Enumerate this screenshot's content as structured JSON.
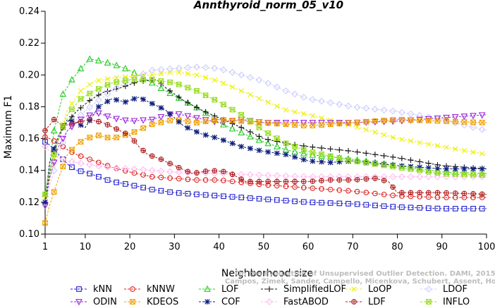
{
  "chart_data": {
    "type": "line",
    "title": "Annthyroid_norm_05_v10",
    "xlabel": "Neighborhood size",
    "ylabel": "Maximum F1",
    "xlim": [
      1,
      100
    ],
    "ylim": [
      0.1,
      0.24
    ],
    "x_ticks": [
      "1",
      "10",
      "20",
      "30",
      "40",
      "50",
      "60",
      "70",
      "80",
      "90",
      "100"
    ],
    "y_ticks": [
      "0.10",
      "0.12",
      "0.14",
      "0.16",
      "0.18",
      "0.20",
      "0.22",
      "0.24"
    ],
    "grid": false,
    "legend_position": "bottom",
    "watermark": [
      "Campos, Zimek, Sander, Campello, Micenkova, Schubert, Assent, Houle",
      "On the Evaluation of Unsupervised Outlier Detection. DAMI, 2015."
    ],
    "series": [
      {
        "name": "kNN",
        "color": "#1f1fd0",
        "marker": "square",
        "points": [
          [
            1,
            0.158
          ],
          [
            2,
            0.156
          ],
          [
            4,
            0.15
          ],
          [
            6,
            0.144
          ],
          [
            8,
            0.14
          ],
          [
            10,
            0.139
          ],
          [
            13,
            0.136
          ],
          [
            16,
            0.133
          ],
          [
            20,
            0.131
          ],
          [
            25,
            0.128
          ],
          [
            30,
            0.126
          ],
          [
            35,
            0.125
          ],
          [
            40,
            0.124
          ],
          [
            50,
            0.122
          ],
          [
            60,
            0.12
          ],
          [
            70,
            0.119
          ],
          [
            80,
            0.117
          ],
          [
            90,
            0.116
          ],
          [
            100,
            0.116
          ]
        ]
      },
      {
        "name": "kNNW",
        "color": "#e02020",
        "marker": "circle",
        "points": [
          [
            1,
            0.161
          ],
          [
            2,
            0.16
          ],
          [
            4,
            0.157
          ],
          [
            6,
            0.153
          ],
          [
            8,
            0.15
          ],
          [
            10,
            0.148
          ],
          [
            13,
            0.145
          ],
          [
            16,
            0.142
          ],
          [
            20,
            0.139
          ],
          [
            25,
            0.136
          ],
          [
            30,
            0.135
          ],
          [
            35,
            0.134
          ],
          [
            40,
            0.134
          ],
          [
            50,
            0.131
          ],
          [
            60,
            0.129
          ],
          [
            70,
            0.127
          ],
          [
            80,
            0.124
          ],
          [
            90,
            0.123
          ],
          [
            100,
            0.123
          ]
        ]
      },
      {
        "name": "LOF",
        "color": "#22cc22",
        "marker": "triangle",
        "points": [
          [
            1,
            0.125
          ],
          [
            2,
            0.143
          ],
          [
            3,
            0.165
          ],
          [
            5,
            0.188
          ],
          [
            7,
            0.197
          ],
          [
            9,
            0.204
          ],
          [
            11,
            0.21
          ],
          [
            13,
            0.209
          ],
          [
            16,
            0.207
          ],
          [
            19,
            0.204
          ],
          [
            22,
            0.2
          ],
          [
            25,
            0.195
          ],
          [
            28,
            0.19
          ],
          [
            32,
            0.184
          ],
          [
            36,
            0.178
          ],
          [
            40,
            0.17
          ],
          [
            44,
            0.165
          ],
          [
            48,
            0.16
          ],
          [
            55,
            0.153
          ],
          [
            60,
            0.15
          ],
          [
            70,
            0.147
          ],
          [
            80,
            0.143
          ],
          [
            90,
            0.139
          ],
          [
            100,
            0.138
          ]
        ]
      },
      {
        "name": "SimplifiedLOF",
        "color": "#111111",
        "marker": "plus",
        "points": [
          [
            1,
            0.12
          ],
          [
            2,
            0.138
          ],
          [
            3,
            0.152
          ],
          [
            5,
            0.167
          ],
          [
            8,
            0.177
          ],
          [
            11,
            0.184
          ],
          [
            14,
            0.189
          ],
          [
            18,
            0.192
          ],
          [
            22,
            0.196
          ],
          [
            26,
            0.197
          ],
          [
            28,
            0.192
          ],
          [
            32,
            0.184
          ],
          [
            36,
            0.178
          ],
          [
            40,
            0.173
          ],
          [
            45,
            0.167
          ],
          [
            50,
            0.16
          ],
          [
            55,
            0.157
          ],
          [
            60,
            0.155
          ],
          [
            70,
            0.152
          ],
          [
            80,
            0.148
          ],
          [
            90,
            0.143
          ],
          [
            100,
            0.141
          ]
        ]
      },
      {
        "name": "LoOP",
        "color": "#eeee00",
        "marker": "x",
        "points": [
          [
            1,
            0.123
          ],
          [
            2,
            0.135
          ],
          [
            4,
            0.16
          ],
          [
            6,
            0.178
          ],
          [
            9,
            0.19
          ],
          [
            12,
            0.196
          ],
          [
            16,
            0.198
          ],
          [
            20,
            0.199
          ],
          [
            25,
            0.2
          ],
          [
            30,
            0.202
          ],
          [
            35,
            0.2
          ],
          [
            40,
            0.196
          ],
          [
            45,
            0.19
          ],
          [
            50,
            0.184
          ],
          [
            55,
            0.178
          ],
          [
            60,
            0.175
          ],
          [
            70,
            0.168
          ],
          [
            80,
            0.16
          ],
          [
            90,
            0.155
          ],
          [
            100,
            0.15
          ]
        ]
      },
      {
        "name": "LDOF",
        "color": "#ccccff",
        "marker": "diamond",
        "points": [
          [
            1,
            0.118
          ],
          [
            2,
            0.13
          ],
          [
            4,
            0.15
          ],
          [
            6,
            0.165
          ],
          [
            9,
            0.175
          ],
          [
            12,
            0.182
          ],
          [
            16,
            0.19
          ],
          [
            20,
            0.197
          ],
          [
            25,
            0.203
          ],
          [
            30,
            0.204
          ],
          [
            35,
            0.205
          ],
          [
            40,
            0.204
          ],
          [
            45,
            0.2
          ],
          [
            50,
            0.196
          ],
          [
            55,
            0.19
          ],
          [
            60,
            0.185
          ],
          [
            70,
            0.18
          ],
          [
            80,
            0.177
          ],
          [
            90,
            0.172
          ],
          [
            100,
            0.165
          ]
        ]
      },
      {
        "name": "ODIN",
        "color": "#9922dd",
        "marker": "triangle-down",
        "points": [
          [
            1,
            0.118
          ],
          [
            2,
            0.135
          ],
          [
            4,
            0.155
          ],
          [
            6,
            0.165
          ],
          [
            8,
            0.17
          ],
          [
            10,
            0.174
          ],
          [
            13,
            0.176
          ],
          [
            16,
            0.173
          ],
          [
            20,
            0.171
          ],
          [
            25,
            0.172
          ],
          [
            30,
            0.176
          ],
          [
            35,
            0.173
          ],
          [
            40,
            0.17
          ],
          [
            45,
            0.172
          ],
          [
            50,
            0.17
          ],
          [
            60,
            0.17
          ],
          [
            70,
            0.17
          ],
          [
            80,
            0.171
          ],
          [
            90,
            0.173
          ],
          [
            100,
            0.175
          ]
        ]
      },
      {
        "name": "KDEOS",
        "color": "#f0a000",
        "marker": "square-x",
        "points": [
          [
            1,
            0.107
          ],
          [
            2,
            0.118
          ],
          [
            4,
            0.135
          ],
          [
            6,
            0.15
          ],
          [
            8,
            0.156
          ],
          [
            10,
            0.16
          ],
          [
            13,
            0.162
          ],
          [
            16,
            0.16
          ],
          [
            20,
            0.163
          ],
          [
            25,
            0.169
          ],
          [
            30,
            0.172
          ],
          [
            35,
            0.17
          ],
          [
            40,
            0.172
          ],
          [
            50,
            0.17
          ],
          [
            60,
            0.168
          ],
          [
            70,
            0.17
          ],
          [
            80,
            0.172
          ],
          [
            90,
            0.171
          ],
          [
            100,
            0.17
          ]
        ]
      },
      {
        "name": "COF",
        "color": "#102080",
        "marker": "star",
        "points": [
          [
            1,
            0.12
          ],
          [
            2,
            0.145
          ],
          [
            4,
            0.162
          ],
          [
            6,
            0.172
          ],
          [
            8,
            0.17
          ],
          [
            10,
            0.167
          ],
          [
            13,
            0.18
          ],
          [
            16,
            0.185
          ],
          [
            19,
            0.183
          ],
          [
            22,
            0.186
          ],
          [
            25,
            0.182
          ],
          [
            28,
            0.178
          ],
          [
            32,
            0.168
          ],
          [
            36,
            0.163
          ],
          [
            40,
            0.16
          ],
          [
            45,
            0.155
          ],
          [
            50,
            0.152
          ],
          [
            55,
            0.15
          ],
          [
            60,
            0.146
          ],
          [
            65,
            0.145
          ],
          [
            70,
            0.146
          ],
          [
            80,
            0.143
          ],
          [
            90,
            0.141
          ],
          [
            100,
            0.141
          ]
        ]
      },
      {
        "name": "FastABOD",
        "color": "#ffbbee",
        "marker": "diamond",
        "points": [
          [
            1,
            0.155
          ],
          [
            2,
            0.152
          ],
          [
            4,
            0.148
          ],
          [
            6,
            0.146
          ],
          [
            8,
            0.145
          ],
          [
            10,
            0.144
          ],
          [
            15,
            0.142
          ],
          [
            20,
            0.141
          ],
          [
            30,
            0.139
          ],
          [
            40,
            0.138
          ],
          [
            50,
            0.137
          ],
          [
            60,
            0.136
          ],
          [
            70,
            0.136
          ],
          [
            80,
            0.136
          ],
          [
            90,
            0.136
          ],
          [
            100,
            0.136
          ]
        ]
      },
      {
        "name": "LDF",
        "color": "#b02020",
        "marker": "circle-plus",
        "points": [
          [
            1,
            0.165
          ],
          [
            3,
            0.172
          ],
          [
            5,
            0.168
          ],
          [
            8,
            0.17
          ],
          [
            11,
            0.172
          ],
          [
            14,
            0.17
          ],
          [
            17,
            0.166
          ],
          [
            20,
            0.162
          ],
          [
            22,
            0.155
          ],
          [
            24,
            0.15
          ],
          [
            27,
            0.147
          ],
          [
            30,
            0.143
          ],
          [
            34,
            0.138
          ],
          [
            38,
            0.14
          ],
          [
            42,
            0.139
          ],
          [
            46,
            0.133
          ],
          [
            50,
            0.133
          ],
          [
            55,
            0.133
          ],
          [
            60,
            0.133
          ],
          [
            65,
            0.134
          ],
          [
            70,
            0.134
          ],
          [
            75,
            0.135
          ],
          [
            78,
            0.133
          ],
          [
            80,
            0.126
          ],
          [
            90,
            0.126
          ],
          [
            100,
            0.125
          ]
        ]
      },
      {
        "name": "INFLO",
        "color": "#99dd22",
        "marker": "square-star",
        "points": [
          [
            1,
            0.125
          ],
          [
            2,
            0.14
          ],
          [
            4,
            0.16
          ],
          [
            6,
            0.175
          ],
          [
            9,
            0.185
          ],
          [
            12,
            0.19
          ],
          [
            16,
            0.195
          ],
          [
            20,
            0.197
          ],
          [
            25,
            0.197
          ],
          [
            30,
            0.195
          ],
          [
            35,
            0.19
          ],
          [
            40,
            0.183
          ],
          [
            45,
            0.175
          ],
          [
            50,
            0.165
          ],
          [
            55,
            0.157
          ],
          [
            60,
            0.152
          ],
          [
            70,
            0.146
          ],
          [
            80,
            0.142
          ],
          [
            90,
            0.138
          ],
          [
            100,
            0.137
          ]
        ]
      }
    ]
  }
}
